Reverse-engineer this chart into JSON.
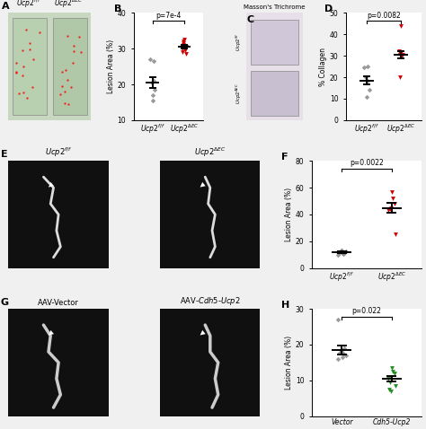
{
  "panel_B": {
    "group1_label": "$Ucp2^{f/f}$",
    "group2_label": "$Ucp2^{\\Delta EC}$",
    "ylabel": "Lesion Area (%)",
    "ylim": [
      10,
      40
    ],
    "yticks": [
      10,
      20,
      30,
      40
    ],
    "pvalue": "p=7e-4",
    "group1_points": [
      27.0,
      26.5,
      20.5,
      21.0,
      18.5,
      17.0,
      15.5
    ],
    "group1_mean": 20.5,
    "group1_sem": 1.5,
    "group2_points": [
      30.0,
      31.0,
      32.5,
      29.5,
      30.5,
      31.5,
      29.0,
      32.0,
      28.5,
      30.2
    ],
    "group2_mean": 30.5,
    "group2_sem": 0.5,
    "group1_color": "#888888",
    "group2_color": "#CC0000"
  },
  "panel_D": {
    "group1_label": "$Ucp2^{f/f}$",
    "group2_label": "$Ucp2^{\\Delta EC}$",
    "ylabel": "% Collagen",
    "ylim": [
      0,
      50
    ],
    "yticks": [
      0,
      10,
      20,
      30,
      40,
      50
    ],
    "pvalue": "p=0.0082",
    "group1_points": [
      24.5,
      25.0,
      20.0,
      18.5,
      14.0,
      11.0
    ],
    "group1_mean": 18.5,
    "group1_sem": 2.0,
    "group2_points": [
      44.0,
      32.0,
      30.5,
      31.5,
      30.0,
      30.5,
      20.0
    ],
    "group2_mean": 30.5,
    "group2_sem": 1.5,
    "group1_color": "#888888",
    "group2_color": "#CC0000"
  },
  "panel_F": {
    "group1_label": "$Ucp2^{f/f}$",
    "group2_label": "$Ucp2^{\\Delta EC}$",
    "ylabel": "Lesion Area (%)",
    "ylim": [
      0,
      80
    ],
    "yticks": [
      0,
      20,
      40,
      60,
      80
    ],
    "pvalue": "p=0.0022",
    "group1_points": [
      12.0,
      11.0,
      13.5,
      10.5,
      12.5,
      11.5,
      13.0,
      10.0,
      11.8
    ],
    "group1_mean": 11.8,
    "group1_sem": 0.5,
    "group2_points": [
      57.0,
      52.0,
      48.0,
      45.0,
      43.5,
      44.0,
      25.0
    ],
    "group2_mean": 45.0,
    "group2_sem": 3.5,
    "group1_color": "#888888",
    "group2_color": "#CC0000"
  },
  "panel_H": {
    "group1_label": "Vector",
    "group2_label": "Cdh5-Ucp2",
    "ylabel": "Lesion Area (%)",
    "ylim": [
      0,
      30
    ],
    "yticks": [
      0,
      10,
      20,
      30
    ],
    "pvalue": "p=0.022",
    "group1_points": [
      27.0,
      19.0,
      18.5,
      17.5,
      17.0,
      16.5,
      18.0,
      16.0,
      17.8
    ],
    "group1_mean": 18.5,
    "group1_sem": 1.2,
    "group2_points": [
      13.5,
      12.5,
      12.0,
      11.0,
      10.5,
      9.5,
      8.5,
      7.5,
      7.0
    ],
    "group2_mean": 10.5,
    "group2_sem": 0.8,
    "group1_color": "#888888",
    "group2_color": "#228B22"
  },
  "figure_bg": "#f0f0f0"
}
